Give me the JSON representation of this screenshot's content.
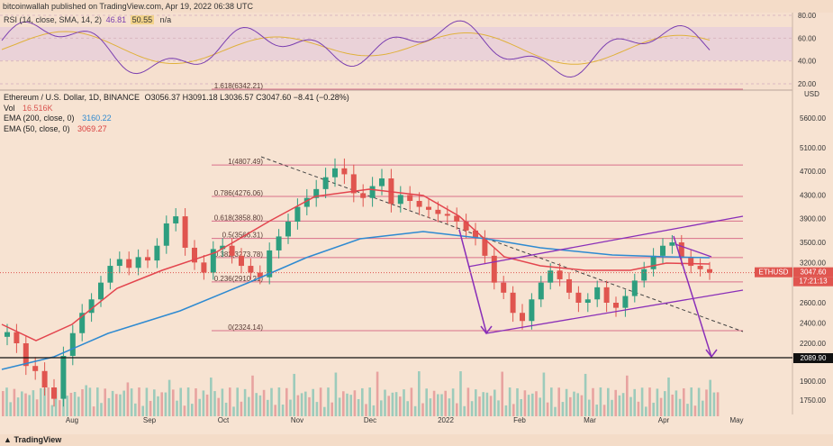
{
  "header": {
    "publisher_line": "bitcoinwallah published on TradingView.com, Apr 19, 2022 06:38 UTC"
  },
  "rsi": {
    "label": "RSI (14, close, SMA, 14, 2)",
    "value1": "46.81",
    "value2": "50.55",
    "value3": "n/a",
    "axis_labels": [
      "80.00",
      "60.00",
      "40.00",
      "20.00"
    ],
    "axis_values": [
      80,
      60,
      40,
      20
    ],
    "colors": {
      "rsi": "#7b3fb0",
      "sma": "#e0b13c",
      "band": "#c7a6d9"
    }
  },
  "main": {
    "title": "Ethereum / U.S. Dollar, 1D, BINANCE",
    "ohlc": "O3056.37  H3091.18  L3036.57  C3047.60  −8.41 (−0.28%)",
    "vol_label": "Vol",
    "vol_value": "16.516K",
    "ema200_label": "EMA (200, close, 0)",
    "ema200_value": "3160.22",
    "ema50_label": "EMA (50, close, 0)",
    "ema50_value": "3069.27",
    "usd_label": "USD",
    "symbol_badge": "ETHUSD",
    "price_badge": "3047.60",
    "countdown_badge": "17:21:13",
    "bottom_badge": "2089.90"
  },
  "footer": {
    "brand": "TradingView"
  },
  "chart_data": {
    "type": "candlestick",
    "title": "Ethereum / U.S. Dollar, 1D, BINANCE",
    "ylim": [
      1600,
      5900
    ],
    "y_ticks": [
      "5600.00",
      "5100.00",
      "4700.00",
      "4300.00",
      "3900.00",
      "3500.00",
      "3200.00",
      "2900.00",
      "2600.00",
      "2400.00",
      "2200.00",
      "1900.00",
      "1750.00"
    ],
    "y_tick_values": [
      5600,
      5100,
      4700,
      4300,
      3900,
      3500,
      3200,
      2900,
      2600,
      2400,
      2200,
      1900,
      1750
    ],
    "x_ticks": [
      "Aug",
      "Sep",
      "Oct",
      "Nov",
      "Dec",
      "2022",
      "Feb",
      "Mar",
      "Apr",
      "May"
    ],
    "fib_levels": [
      {
        "label": "1.618(6342.21)",
        "price": 6342.21
      },
      {
        "label": "1(4807.49)",
        "price": 4807.49
      },
      {
        "label": "0.786(4276.06)",
        "price": 4276.06
      },
      {
        "label": "0.618(3858.80)",
        "price": 3858.8
      },
      {
        "label": "0.5(3566.31)",
        "price": 3566.31
      },
      {
        "label": "0.382(3273.78)",
        "price": 3273.78
      },
      {
        "label": "0.236(2910.21)",
        "price": 2910.21
      },
      {
        "label": "0(2324.14)",
        "price": 2324.14
      }
    ],
    "last_price": 3047.6,
    "support_line": 2089.9,
    "series": [
      {
        "name": "ETHUSD",
        "type": "candlestick",
        "close": [
          2310,
          2200,
          2020,
          1980,
          1850,
          1760,
          2100,
          2300,
          2500,
          2650,
          2900,
          3150,
          3250,
          3120,
          3280,
          3230,
          3450,
          3820,
          3940,
          3420,
          3200,
          3050,
          3400,
          3450,
          3300,
          3150,
          3050,
          2980,
          3380,
          3600,
          3850,
          4100,
          4250,
          4400,
          4600,
          4750,
          4650,
          4330,
          4250,
          4450,
          4580,
          4150,
          4300,
          4200,
          4100,
          4050,
          3980,
          3950,
          3850,
          3700,
          3580,
          3300,
          2900,
          2750,
          2500,
          2420,
          2650,
          2900,
          3080,
          2950,
          2750,
          2600,
          2650,
          2830,
          2600,
          2550,
          2700,
          2930,
          3100,
          3300,
          3450,
          3500,
          3270,
          3150,
          3100,
          3047.6
        ],
        "colors": {
          "up": "#2e9e7f",
          "down": "#e0554f"
        }
      },
      {
        "name": "EMA (200, close, 0)",
        "color": "#2e8ad1"
      },
      {
        "name": "EMA (50, close, 0)",
        "color": "#e3454e"
      }
    ]
  }
}
